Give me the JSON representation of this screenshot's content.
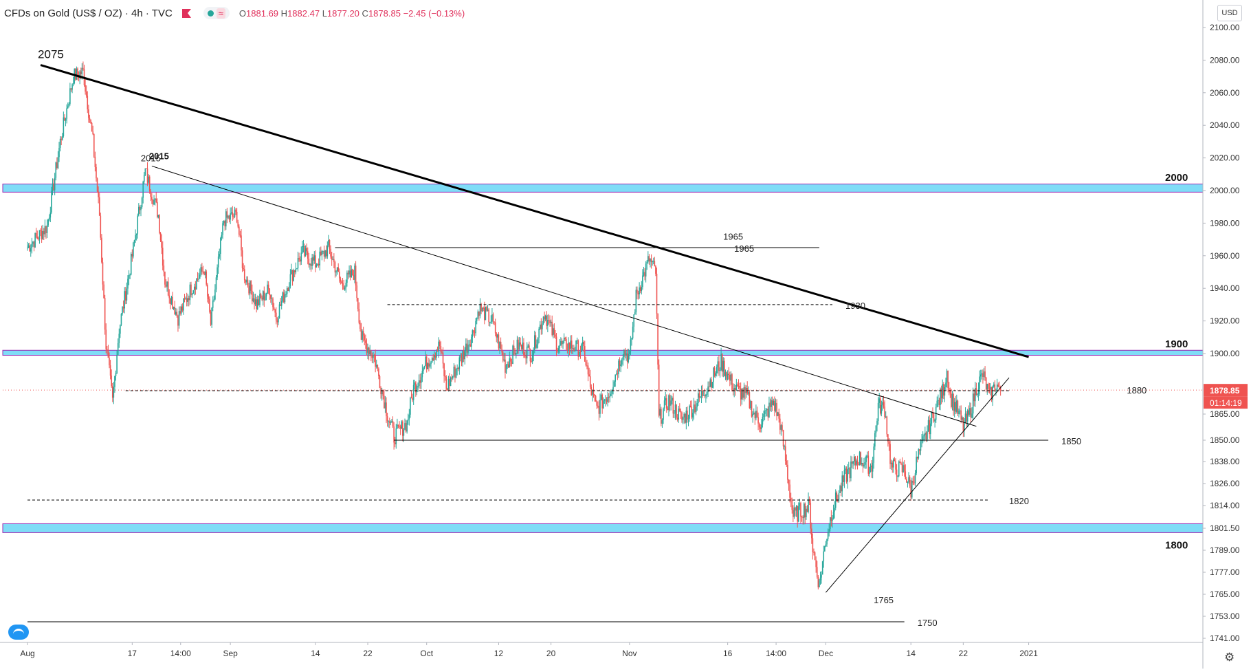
{
  "header": {
    "symbol": "CFDs on Gold (US$ / OZ) · 4h · TVC",
    "ohlc": [
      {
        "k": "O",
        "v": "1881.69"
      },
      {
        "k": "H",
        "v": "1882.47"
      },
      {
        "k": "L",
        "v": "1877.20"
      },
      {
        "k": "C",
        "v": "1878.85"
      }
    ],
    "change": "−2.45 (−0.13%)"
  },
  "currency_button": "USD",
  "colors": {
    "up": "#26a69a",
    "down": "#ef5350",
    "zone_fill": "#7fdcf7",
    "zone_border": "#9c27b0",
    "price_label": "#ef5350",
    "text": "#333333"
  },
  "chart_data": {
    "type": "candlestick",
    "title": "CFDs on Gold (US$ / OZ) · 4h · TVC",
    "ylim": [
      1736,
      2108
    ],
    "y_ticks": [
      {
        "label": "2100.00",
        "value": 2100
      },
      {
        "label": "2080.00",
        "value": 2080
      },
      {
        "label": "2060.00",
        "value": 2060
      },
      {
        "label": "2040.00",
        "value": 2040
      },
      {
        "label": "2020.00",
        "value": 2020
      },
      {
        "label": "2000.00",
        "value": 2000
      },
      {
        "label": "1980.00",
        "value": 1980
      },
      {
        "label": "1960.00",
        "value": 1960
      },
      {
        "label": "1940.00",
        "value": 1940
      },
      {
        "label": "1920.00",
        "value": 1920
      },
      {
        "label": "1900.00",
        "value": 1900
      },
      {
        "label": "1865.00",
        "value": 1865
      },
      {
        "label": "1850.00",
        "value": 1850
      },
      {
        "label": "1838.00",
        "value": 1838
      },
      {
        "label": "1826.00",
        "value": 1826
      },
      {
        "label": "1814.00",
        "value": 1814
      },
      {
        "label": "1801.50",
        "value": 1801.5
      },
      {
        "label": "1789.00",
        "value": 1789
      },
      {
        "label": "1777.00",
        "value": 1777
      },
      {
        "label": "1765.00",
        "value": 1765
      },
      {
        "label": "1753.00",
        "value": 1753
      },
      {
        "label": "1741.00",
        "value": 1741
      }
    ],
    "x_ticks": [
      {
        "label": "Aug",
        "day": 0
      },
      {
        "label": "17",
        "day": 16
      },
      {
        "label": "14:00",
        "day": 23.4
      },
      {
        "label": "Sep",
        "day": 31
      },
      {
        "label": "14",
        "day": 44
      },
      {
        "label": "22",
        "day": 52
      },
      {
        "label": "Oct",
        "day": 61
      },
      {
        "label": "12",
        "day": 72
      },
      {
        "label": "20",
        "day": 80
      },
      {
        "label": "Nov",
        "day": 92
      },
      {
        "label": "16",
        "day": 107
      },
      {
        "label": "14:00",
        "day": 114.4
      },
      {
        "label": "Dec",
        "day": 122
      },
      {
        "label": "14",
        "day": 135
      },
      {
        "label": "22",
        "day": 143
      },
      {
        "label": "2021",
        "day": 153
      }
    ],
    "last_price": {
      "label": "1878.85",
      "value": 1878.85,
      "countdown": "01:14:19"
    },
    "key_points": [
      {
        "day": 0,
        "value": 1965
      },
      {
        "day": 3,
        "value": 1978
      },
      {
        "day": 5,
        "value": 2030
      },
      {
        "day": 7,
        "value": 2070
      },
      {
        "day": 8.5,
        "value": 2073
      },
      {
        "day": 10,
        "value": 2030
      },
      {
        "day": 11,
        "value": 1985
      },
      {
        "day": 12,
        "value": 1905
      },
      {
        "day": 13,
        "value": 1872
      },
      {
        "day": 14,
        "value": 1915
      },
      {
        "day": 16,
        "value": 1960
      },
      {
        "day": 18,
        "value": 2012
      },
      {
        "day": 20,
        "value": 1985
      },
      {
        "day": 21,
        "value": 1945
      },
      {
        "day": 23,
        "value": 1922
      },
      {
        "day": 25,
        "value": 1940
      },
      {
        "day": 27,
        "value": 1952
      },
      {
        "day": 28,
        "value": 1918
      },
      {
        "day": 30,
        "value": 1982
      },
      {
        "day": 32,
        "value": 1985
      },
      {
        "day": 33,
        "value": 1950
      },
      {
        "day": 35,
        "value": 1930
      },
      {
        "day": 37,
        "value": 1940
      },
      {
        "day": 38,
        "value": 1922
      },
      {
        "day": 40,
        "value": 1945
      },
      {
        "day": 42,
        "value": 1962
      },
      {
        "day": 44,
        "value": 1955
      },
      {
        "day": 46,
        "value": 1965
      },
      {
        "day": 48,
        "value": 1942
      },
      {
        "day": 50,
        "value": 1950
      },
      {
        "day": 51,
        "value": 1910
      },
      {
        "day": 53,
        "value": 1898
      },
      {
        "day": 55,
        "value": 1865
      },
      {
        "day": 56,
        "value": 1852
      },
      {
        "day": 58,
        "value": 1860
      },
      {
        "day": 59,
        "value": 1880
      },
      {
        "day": 61,
        "value": 1895
      },
      {
        "day": 63,
        "value": 1905
      },
      {
        "day": 64,
        "value": 1880
      },
      {
        "day": 66,
        "value": 1895
      },
      {
        "day": 68,
        "value": 1912
      },
      {
        "day": 69,
        "value": 1928
      },
      {
        "day": 71,
        "value": 1920
      },
      {
        "day": 73,
        "value": 1893
      },
      {
        "day": 75,
        "value": 1905
      },
      {
        "day": 77,
        "value": 1900
      },
      {
        "day": 79,
        "value": 1925
      },
      {
        "day": 81,
        "value": 1905
      },
      {
        "day": 83,
        "value": 1905
      },
      {
        "day": 85,
        "value": 1902
      },
      {
        "day": 86,
        "value": 1880
      },
      {
        "day": 87,
        "value": 1868
      },
      {
        "day": 89,
        "value": 1878
      },
      {
        "day": 91,
        "value": 1902
      },
      {
        "day": 92,
        "value": 1898
      },
      {
        "day": 93,
        "value": 1935
      },
      {
        "day": 95,
        "value": 1958
      },
      {
        "day": 96,
        "value": 1950
      },
      {
        "day": 96.5,
        "value": 1862
      },
      {
        "day": 98,
        "value": 1873
      },
      {
        "day": 100,
        "value": 1862
      },
      {
        "day": 102,
        "value": 1870
      },
      {
        "day": 104,
        "value": 1882
      },
      {
        "day": 106,
        "value": 1895
      },
      {
        "day": 108,
        "value": 1880
      },
      {
        "day": 110,
        "value": 1875
      },
      {
        "day": 111,
        "value": 1865
      },
      {
        "day": 112,
        "value": 1860
      },
      {
        "day": 114,
        "value": 1872
      },
      {
        "day": 115,
        "value": 1860
      },
      {
        "day": 116,
        "value": 1835
      },
      {
        "day": 117,
        "value": 1808
      },
      {
        "day": 118.5,
        "value": 1812
      },
      {
        "day": 119.5,
        "value": 1813
      },
      {
        "day": 120,
        "value": 1790
      },
      {
        "day": 121,
        "value": 1770
      },
      {
        "day": 122,
        "value": 1795
      },
      {
        "day": 123,
        "value": 1812
      },
      {
        "day": 125,
        "value": 1830
      },
      {
        "day": 127,
        "value": 1840
      },
      {
        "day": 129,
        "value": 1835
      },
      {
        "day": 130,
        "value": 1870
      },
      {
        "day": 131,
        "value": 1868
      },
      {
        "day": 132,
        "value": 1835
      },
      {
        "day": 134,
        "value": 1833
      },
      {
        "day": 135,
        "value": 1822
      },
      {
        "day": 136,
        "value": 1840
      },
      {
        "day": 137.5,
        "value": 1855
      },
      {
        "day": 139,
        "value": 1870
      },
      {
        "day": 140,
        "value": 1880
      },
      {
        "day": 140.5,
        "value": 1890
      },
      {
        "day": 141,
        "value": 1875
      },
      {
        "day": 142,
        "value": 1868
      },
      {
        "day": 143,
        "value": 1858
      },
      {
        "day": 144,
        "value": 1865
      },
      {
        "day": 145,
        "value": 1880
      },
      {
        "day": 146,
        "value": 1888
      },
      {
        "day": 147,
        "value": 1875
      },
      {
        "day": 148,
        "value": 1882
      },
      {
        "day": 148.7,
        "value": 1879
      }
    ],
    "zones": [
      {
        "label": "2000",
        "from": 1999,
        "to": 2004
      },
      {
        "label": "1900",
        "from": 1899,
        "to": 1902
      },
      {
        "label": "1800",
        "from": 1799,
        "to": 1804
      }
    ],
    "trendlines": [
      {
        "label": "2075",
        "from": [
          2,
          2077
        ],
        "to": [
          153,
          1898
        ],
        "style": "thick"
      },
      {
        "label": "2015",
        "from": [
          19,
          2015
        ],
        "to": [
          145,
          1858
        ],
        "style": "thin"
      },
      {
        "label": "",
        "from": [
          122,
          1766
        ],
        "to": [
          150,
          1886
        ],
        "style": "thin"
      }
    ],
    "levels": [
      {
        "label": "1965",
        "value": 1965,
        "from": 47,
        "to": 121,
        "style": "solid",
        "label_at": 108
      },
      {
        "label": "1930",
        "value": 1930,
        "from": 55,
        "to": 123,
        "style": "dashed",
        "label_at": 125
      },
      {
        "label": "1880",
        "value": 1878.5,
        "from": 15,
        "to": 150,
        "style": "dashed",
        "label_at": 168
      },
      {
        "label": "1850",
        "value": 1850,
        "from": 56,
        "to": 156,
        "style": "solid",
        "label_at": 158
      },
      {
        "label": "1820",
        "value": 1817,
        "from": 0,
        "to": 147,
        "style": "dashed",
        "label_at": 150
      },
      {
        "label": "1750",
        "value": 1750,
        "from": 0,
        "to": 134,
        "style": "solid",
        "label_at": 136
      }
    ],
    "point_labels": [
      {
        "label": "2015",
        "day": 19,
        "value": 2020
      },
      {
        "label": "1965",
        "day": 108,
        "value": 1972
      },
      {
        "label": "1765",
        "day": 131,
        "value": 1762
      }
    ]
  }
}
